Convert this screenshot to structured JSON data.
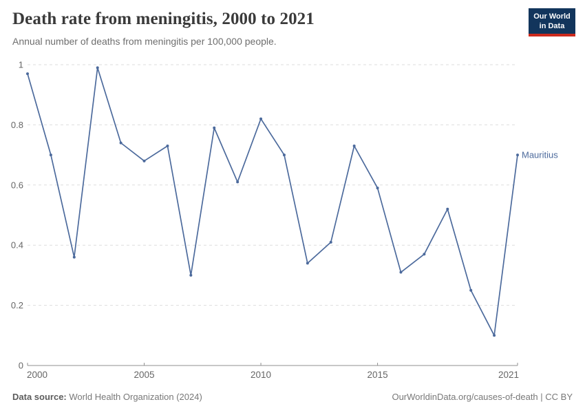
{
  "header": {
    "title": "Death rate from meningitis, 2000 to 2021",
    "subtitle": "Annual number of deaths from meningitis per 100,000 people.",
    "logo": {
      "line1": "Our World",
      "line2": "in Data",
      "bg_color": "#12355C",
      "accent_color": "#CC2A1D"
    }
  },
  "chart_data": {
    "type": "line",
    "title": "Death rate from meningitis, 2000 to 2021",
    "xlabel": "",
    "ylabel": "",
    "xlim": [
      2000,
      2021
    ],
    "ylim": [
      0,
      1
    ],
    "xticks": [
      2000,
      2005,
      2010,
      2015,
      2021
    ],
    "yticks": [
      0,
      0.2,
      0.4,
      0.6,
      0.8,
      1
    ],
    "grid": "horizontal-dashed",
    "grid_color": "#dddddd",
    "axis_color": "#8f8f8f",
    "tick_label_color": "#666666",
    "legend_position": "end-of-line",
    "x": [
      2000,
      2001,
      2002,
      2003,
      2004,
      2005,
      2006,
      2007,
      2008,
      2009,
      2010,
      2011,
      2012,
      2013,
      2014,
      2015,
      2016,
      2017,
      2018,
      2019,
      2020,
      2021
    ],
    "series": [
      {
        "name": "Mauritius",
        "color": "#4C6A9C",
        "values": [
          0.97,
          0.7,
          0.36,
          0.99,
          0.74,
          0.68,
          0.73,
          0.3,
          0.79,
          0.61,
          0.82,
          0.7,
          0.34,
          0.41,
          0.73,
          0.59,
          0.31,
          0.37,
          0.52,
          0.25,
          0.1,
          0.7
        ]
      }
    ]
  },
  "footer": {
    "source_label": "Data source:",
    "source_text": "World Health Organization (2024)",
    "attribution": "OurWorldinData.org/causes-of-death | CC BY"
  }
}
